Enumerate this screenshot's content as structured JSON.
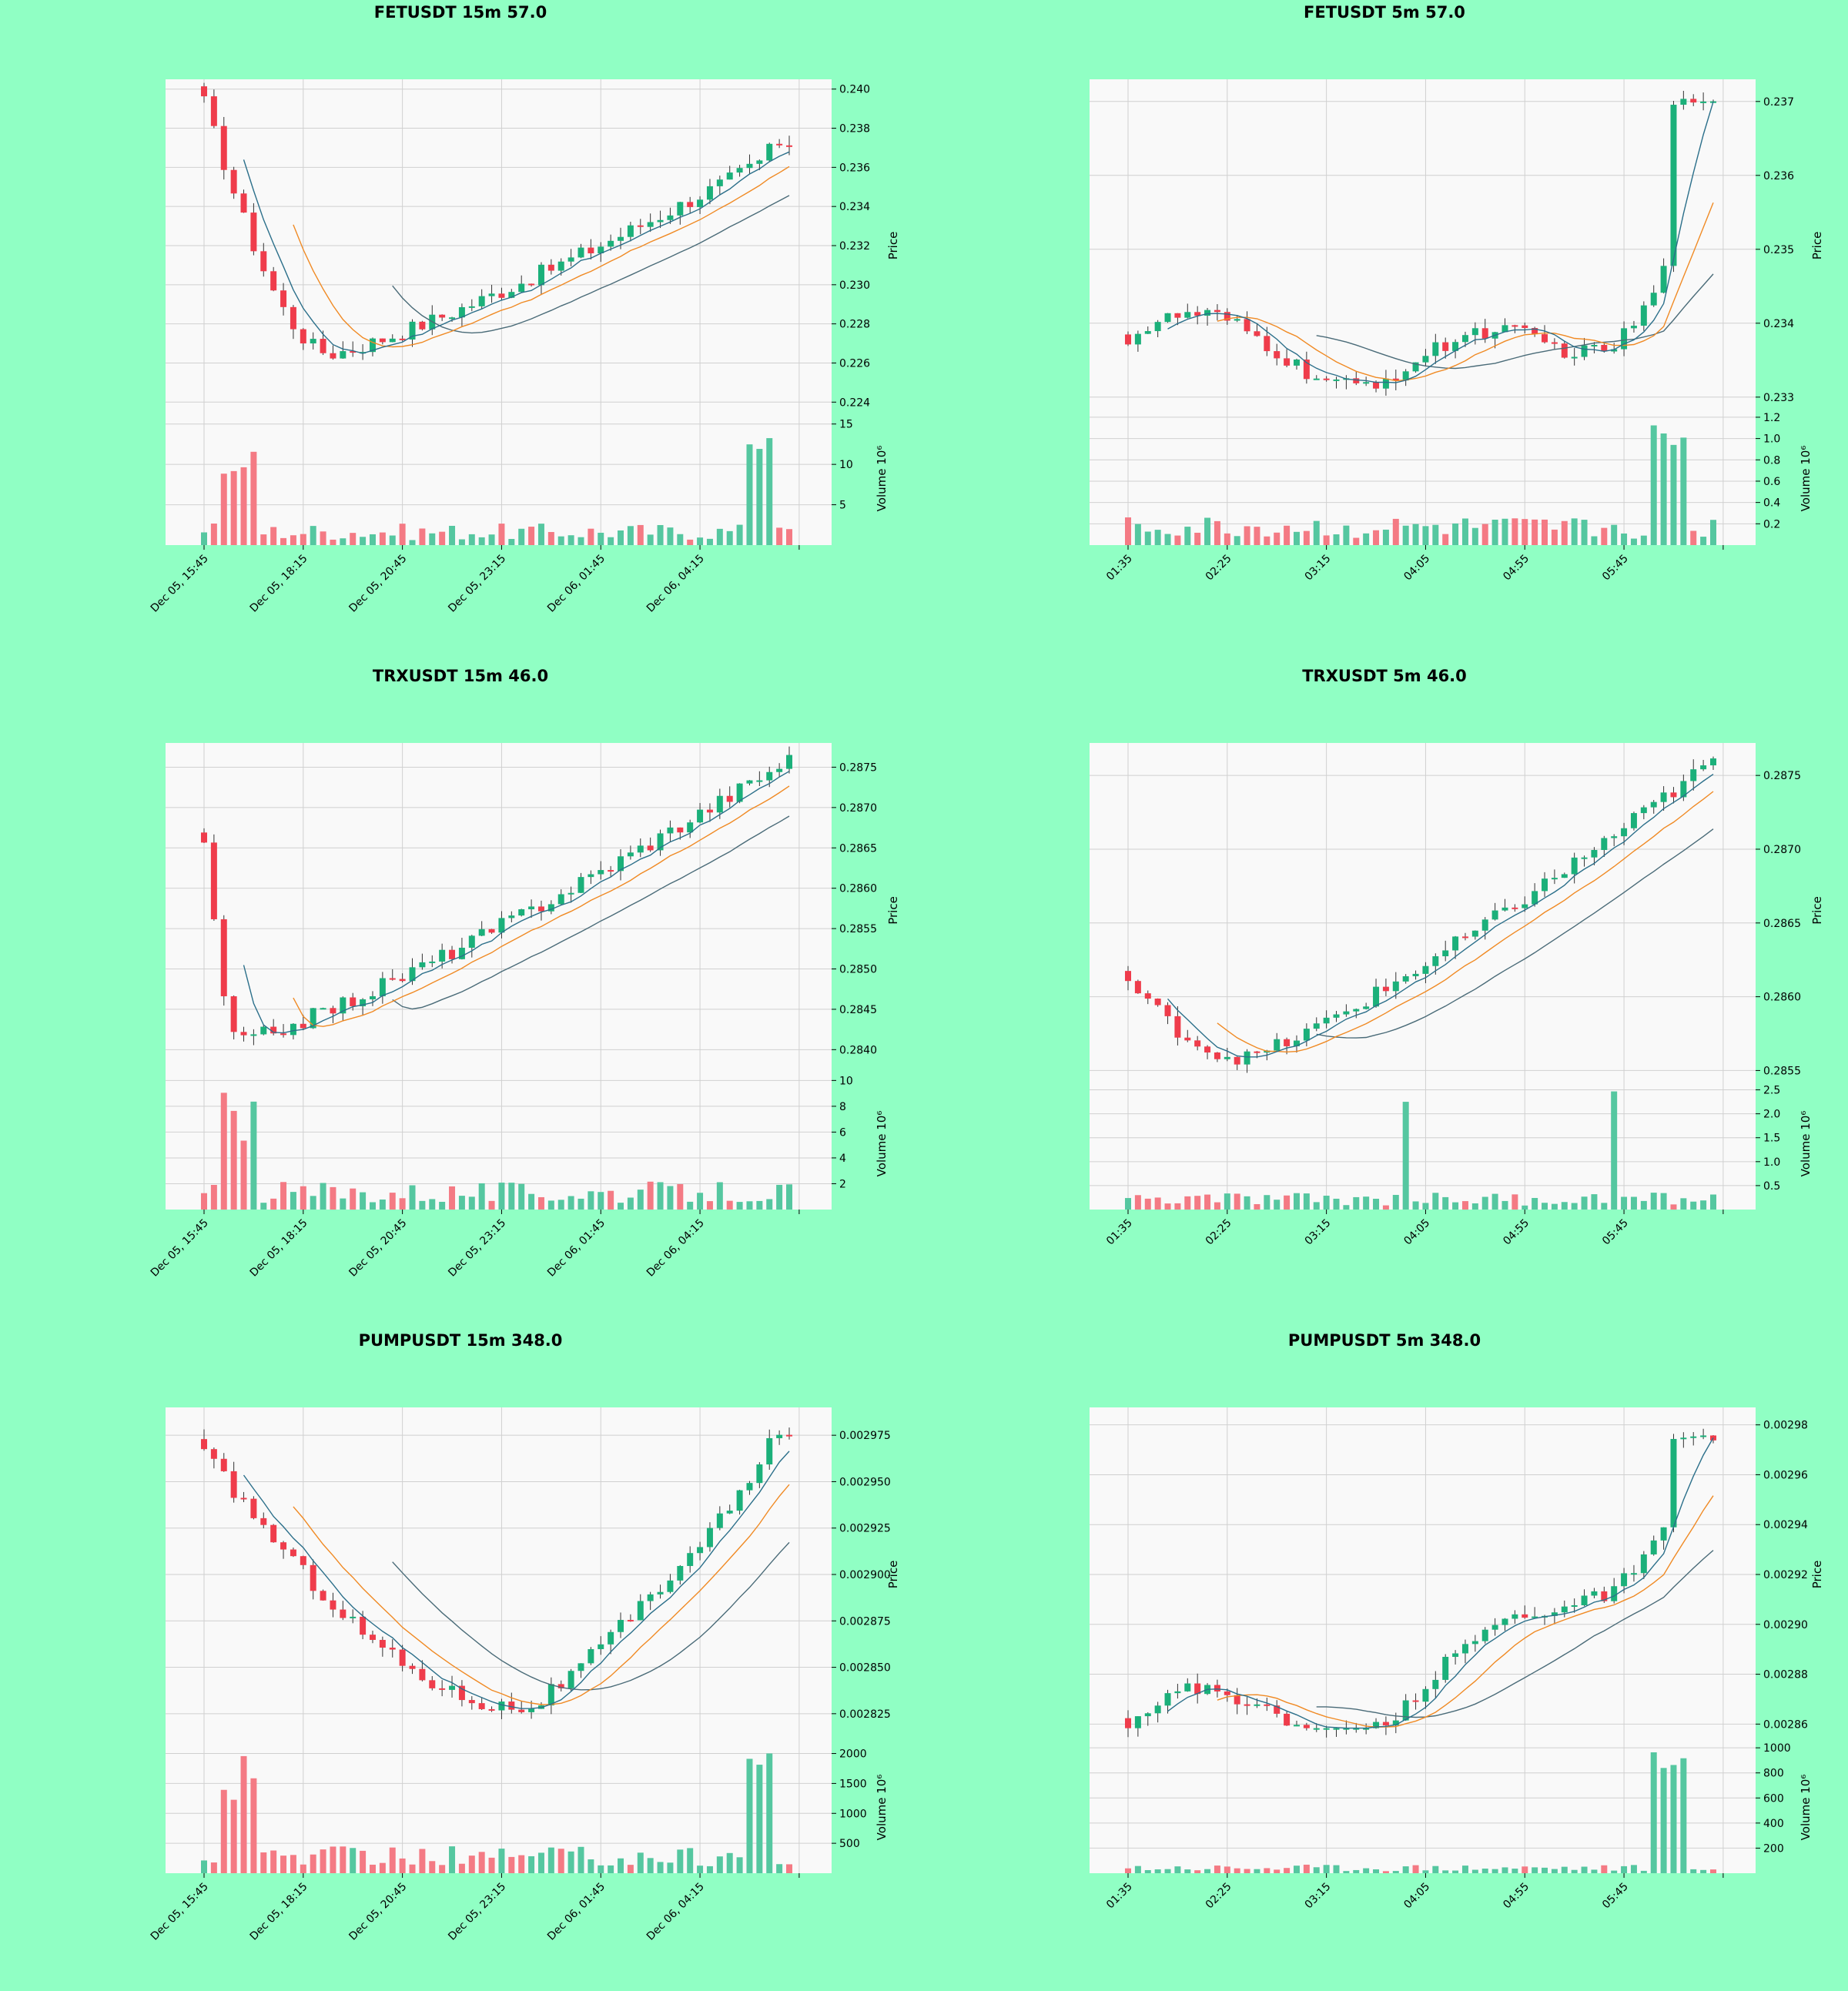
{
  "colors": {
    "background": "#90ffc4",
    "panel": "#f9f9f9",
    "grid": "#d0d0d0",
    "up": "#1bb07a",
    "down": "#ef3c4b",
    "up_volume": "#55c7a0",
    "down_volume": "#f47a84",
    "ma_fast": "#2b6f8a",
    "ma_mid": "#f08a24",
    "ma_slow": "#4a6b78"
  },
  "chart_data": [
    {
      "title": "FETUSDT 15m 57.0",
      "type": "candlestick",
      "ylabel": "Price",
      "volume_label": "Volume  10⁶",
      "price_ticks": [
        "0.224",
        "0.226",
        "0.228",
        "0.230",
        "0.232",
        "0.234",
        "0.236",
        "0.238",
        "0.240"
      ],
      "volume_ticks": [
        "5",
        "10",
        "15"
      ],
      "x_ticks": [
        "Dec 05, 15:45",
        "Dec 05, 18:15",
        "Dec 05, 20:45",
        "Dec 05, 23:15",
        "Dec 06, 01:45",
        "Dec 06, 04:15"
      ],
      "price_range": [
        0.2235,
        0.2405
      ],
      "volume_range": [
        0,
        16.5
      ],
      "start": 0.2393,
      "end": 0.237,
      "pattern": "dip_rise",
      "low_point": 0.2265,
      "low_at": 0.22,
      "spike_at": 0.95,
      "spike_value": 0.2372,
      "volume_peak": 14.5,
      "volume_base": 1.5
    },
    {
      "title": "FETUSDT 5m 57.0",
      "type": "candlestick",
      "ylabel": "Price",
      "volume_label": "Volume  10⁶",
      "price_ticks": [
        "0.233",
        "0.234",
        "0.235",
        "0.236",
        "0.237"
      ],
      "volume_ticks": [
        "0.2",
        "0.4",
        "0.6",
        "0.8",
        "1.0",
        "1.2"
      ],
      "x_ticks": [
        "01:35",
        "02:25",
        "03:15",
        "04:05",
        "04:55",
        "05:45"
      ],
      "price_range": [
        0.2328,
        0.2373
      ],
      "volume_range": [
        0,
        1.25
      ],
      "start": 0.2338,
      "end": 0.2368,
      "pattern": "wave_spike",
      "low_point": 0.2335,
      "low_at": 0.62,
      "spike_at": 0.92,
      "spike_value": 0.237,
      "volume_peak": 1.15,
      "volume_base": 0.15
    },
    {
      "title": "TRXUSDT 15m 46.0",
      "type": "candlestick",
      "ylabel": "Price",
      "volume_label": "Volume  10⁶",
      "price_ticks": [
        "0.2840",
        "0.2845",
        "0.2850",
        "0.2855",
        "0.2860",
        "0.2865",
        "0.2870",
        "0.2875"
      ],
      "volume_ticks": [
        "2",
        "4",
        "6",
        "8",
        "10"
      ],
      "x_ticks": [
        "Dec 05, 15:45",
        "Dec 05, 18:15",
        "Dec 05, 20:45",
        "Dec 05, 23:15",
        "Dec 06, 01:45",
        "Dec 06, 04:15"
      ],
      "price_range": [
        0.28365,
        0.2878
      ],
      "volume_range": [
        0,
        10.2
      ],
      "start": 0.2866,
      "end": 0.2876,
      "pattern": "dip_rise",
      "low_point": 0.2841,
      "low_at": 0.06,
      "spike_at": -1,
      "spike_value": 0,
      "volume_peak": 9.5,
      "volume_base": 1.2
    },
    {
      "title": "TRXUSDT 5m 46.0",
      "type": "candlestick",
      "ylabel": "Price",
      "volume_label": "Volume  10⁶",
      "price_ticks": [
        "0.2855",
        "0.2860",
        "0.2865",
        "0.2870",
        "0.2875"
      ],
      "volume_ticks": [
        "0.5",
        "1.0",
        "1.5",
        "2.0",
        "2.5"
      ],
      "x_ticks": [
        "01:35",
        "02:25",
        "03:15",
        "04:05",
        "04:55",
        "05:45"
      ],
      "price_range": [
        0.28545,
        0.28772
      ],
      "volume_range": [
        0,
        2.75
      ],
      "start": 0.2861,
      "end": 0.2876,
      "pattern": "dip_rise",
      "low_point": 0.28558,
      "low_at": 0.2,
      "spike_at": -1,
      "spike_value": 0,
      "volume_peak": 2.6,
      "volume_base": 0.2
    },
    {
      "title": "PUMPUSDT 15m 348.0",
      "type": "candlestick",
      "ylabel": "Price",
      "volume_label": "Volume  10⁶",
      "price_ticks": [
        "0.002825",
        "0.002850",
        "0.002875",
        "0.002900",
        "0.002925",
        "0.002950",
        "0.002975"
      ],
      "volume_ticks": [
        "500",
        "1000",
        "1500",
        "2000"
      ],
      "x_ticks": [
        "Dec 05, 15:45",
        "Dec 05, 18:15",
        "Dec 05, 20:45",
        "Dec 05, 23:15",
        "Dec 06, 01:45",
        "Dec 06, 04:15"
      ],
      "price_range": [
        0.00281,
        0.00299
      ],
      "volume_range": [
        0,
        2200
      ],
      "start": 0.002965,
      "end": 0.002975,
      "pattern": "dip_rise",
      "low_point": 0.002828,
      "low_at": 0.55,
      "spike_at": 0.95,
      "spike_value": 0.002975,
      "volume_peak": 2150,
      "volume_base": 250
    },
    {
      "title": "PUMPUSDT 5m 348.0",
      "type": "candlestick",
      "ylabel": "Price",
      "volume_label": "Volume  10⁶",
      "price_ticks": [
        "0.00286",
        "0.00288",
        "0.00290",
        "0.00292",
        "0.00294",
        "0.00296",
        "0.00298"
      ],
      "volume_ticks": [
        "200",
        "400",
        "600",
        "800",
        "1000"
      ],
      "x_ticks": [
        "01:35",
        "02:25",
        "03:15",
        "04:05",
        "04:55",
        "05:45"
      ],
      "price_range": [
        0.002853,
        0.002987
      ],
      "volume_range": [
        0,
        1050
      ],
      "start": 0.00286,
      "end": 0.002975,
      "pattern": "wave_spike",
      "low_point": 0.002862,
      "low_at": 0.05,
      "spike_at": 0.92,
      "spike_value": 0.002975,
      "volume_peak": 1020,
      "volume_base": 40
    }
  ]
}
